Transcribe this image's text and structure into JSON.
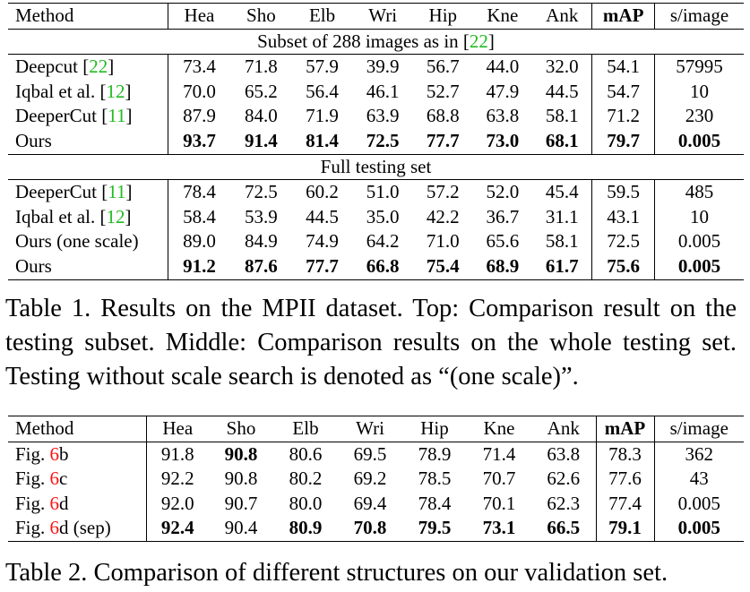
{
  "table1": {
    "headers": [
      "Method",
      "Hea",
      "Sho",
      "Elb",
      "Wri",
      "Hip",
      "Kne",
      "Ank",
      "mAP",
      "s/image"
    ],
    "subset_title": {
      "text": "Subset of 288 images as in [",
      "ref": "22",
      "close": "]"
    },
    "subset_rows": [
      {
        "name": "Deepcut [",
        "ref": "22",
        "close": "]",
        "values": [
          "73.4",
          "71.8",
          "57.9",
          "39.9",
          "56.7",
          "44.0",
          "32.0",
          "54.1",
          "57995"
        ],
        "bold": false
      },
      {
        "name": "Iqbal et al. [",
        "ref": "12",
        "close": "]",
        "values": [
          "70.0",
          "65.2",
          "56.4",
          "46.1",
          "52.7",
          "47.9",
          "44.5",
          "54.7",
          "10"
        ],
        "bold": false
      },
      {
        "name": "DeeperCut [",
        "ref": "11",
        "close": "]",
        "values": [
          "87.9",
          "84.0",
          "71.9",
          "63.9",
          "68.8",
          "63.8",
          "58.1",
          "71.2",
          "230"
        ],
        "bold": false
      },
      {
        "name": "Ours",
        "ref": "",
        "close": "",
        "values": [
          "93.7",
          "91.4",
          "81.4",
          "72.5",
          "77.7",
          "73.0",
          "68.1",
          "79.7",
          "0.005"
        ],
        "bold": true
      }
    ],
    "full_title": "Full testing set",
    "full_rows": [
      {
        "name": "DeeperCut [",
        "ref": "11",
        "close": "]",
        "values": [
          "78.4",
          "72.5",
          "60.2",
          "51.0",
          "57.2",
          "52.0",
          "45.4",
          "59.5",
          "485"
        ],
        "bold": false
      },
      {
        "name": "Iqbal et al. [",
        "ref": "12",
        "close": "]",
        "values": [
          "58.4",
          "53.9",
          "44.5",
          "35.0",
          "42.2",
          "36.7",
          "31.1",
          "43.1",
          "10"
        ],
        "bold": false
      },
      {
        "name": "Ours (one scale)",
        "ref": "",
        "close": "",
        "values": [
          "89.0",
          "84.9",
          "74.9",
          "64.2",
          "71.0",
          "65.6",
          "58.1",
          "72.5",
          "0.005"
        ],
        "bold": false
      },
      {
        "name": "Ours",
        "ref": "",
        "close": "",
        "values": [
          "91.2",
          "87.6",
          "77.7",
          "66.8",
          "75.4",
          "68.9",
          "61.7",
          "75.6",
          "0.005"
        ],
        "bold": true
      }
    ],
    "caption": "Table 1. Results on the MPII dataset. Top: Comparison result on the testing subset. Middle: Comparison results on the whole testing set. Testing without scale search is denoted as “(one scale)”."
  },
  "table2": {
    "headers": [
      "Method",
      "Hea",
      "Sho",
      "Elb",
      "Wri",
      "Hip",
      "Kne",
      "Ank",
      "mAP",
      "s/image"
    ],
    "rows": [
      {
        "prefix": "Fig. ",
        "fig": "6",
        "suffix": "b",
        "values": [
          "91.8",
          "90.8",
          "80.6",
          "69.5",
          "78.9",
          "71.4",
          "63.8",
          "78.3",
          "362"
        ],
        "bold": [
          false,
          true,
          false,
          false,
          false,
          false,
          false,
          false,
          false
        ]
      },
      {
        "prefix": "Fig. ",
        "fig": "6",
        "suffix": "c",
        "values": [
          "92.2",
          "90.8",
          "80.2",
          "69.2",
          "78.5",
          "70.7",
          "62.6",
          "77.6",
          "43"
        ],
        "bold": [
          false,
          false,
          false,
          false,
          false,
          false,
          false,
          false,
          false
        ]
      },
      {
        "prefix": "Fig. ",
        "fig": "6",
        "suffix": "d",
        "values": [
          "92.0",
          "90.7",
          "80.0",
          "69.4",
          "78.4",
          "70.1",
          "62.3",
          "77.4",
          "0.005"
        ],
        "bold": [
          false,
          false,
          false,
          false,
          false,
          false,
          false,
          false,
          false
        ]
      },
      {
        "prefix": "Fig. ",
        "fig": "6",
        "suffix": "d (sep)",
        "values": [
          "92.4",
          "90.4",
          "80.9",
          "70.8",
          "79.5",
          "73.1",
          "66.5",
          "79.1",
          "0.005"
        ],
        "bold": [
          true,
          false,
          true,
          true,
          true,
          true,
          true,
          true,
          true
        ]
      }
    ],
    "caption": "Table 2. Comparison of different structures on our validation set."
  },
  "colors": {
    "reference_link": "#22bb22",
    "figure_link": "#ff1111"
  }
}
